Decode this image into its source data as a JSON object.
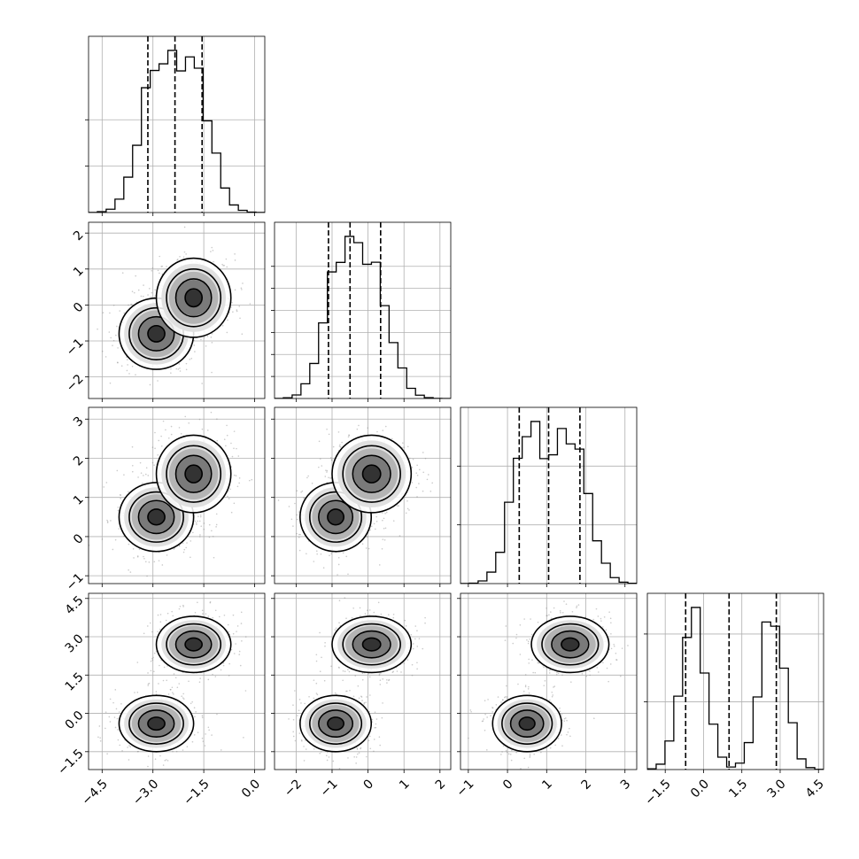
{
  "chart_data": {
    "type": "corner",
    "title": "",
    "grid": true,
    "quantiles_shown": [
      0.16,
      0.5,
      0.84
    ],
    "colors": {
      "points": "#8a8a8a",
      "lines": "#000000",
      "grid": "#b0b0b0",
      "frame": "#000000"
    },
    "parameters": [
      {
        "name": "",
        "range": [
          -4.9,
          0.3
        ],
        "ticks": [
          -4.5,
          -3.0,
          -1.5,
          0.0
        ],
        "tick_labels": [
          "−4.5",
          "−3.0",
          "−1.5",
          "0.0"
        ],
        "modes": [
          {
            "mean": -2.9,
            "sd": 0.5
          },
          {
            "mean": -1.8,
            "sd": 0.5
          }
        ],
        "quantiles": [
          -3.15,
          -2.35,
          -1.55
        ]
      },
      {
        "name": "",
        "range": [
          -2.6,
          2.3
        ],
        "ticks": [
          -2,
          -1,
          0,
          1,
          2
        ],
        "tick_labels": [
          "−2",
          "−1",
          "0",
          "1",
          "2"
        ],
        "modes": [
          {
            "mean": -0.8,
            "sd": 0.45
          },
          {
            "mean": 0.1,
            "sd": 0.5
          }
        ],
        "quantiles": [
          -1.1,
          -0.5,
          0.35
        ]
      },
      {
        "name": "",
        "range": [
          -1.2,
          3.3
        ],
        "ticks": [
          -1,
          0,
          1,
          2,
          3
        ],
        "tick_labels": [
          "−1",
          "0",
          "1",
          "2",
          "3"
        ],
        "modes": [
          {
            "mean": 0.5,
            "sd": 0.4
          },
          {
            "mean": 1.6,
            "sd": 0.45
          }
        ],
        "quantiles": [
          0.3,
          1.05,
          1.85
        ]
      },
      {
        "name": "",
        "range": [
          -2.2,
          4.7
        ],
        "ticks": [
          -1.5,
          0.0,
          1.5,
          3.0,
          4.5
        ],
        "tick_labels": [
          "−1.5",
          "0.0",
          "1.5",
          "3.0",
          "4.5"
        ],
        "modes": [
          {
            "mean": -0.4,
            "sd": 0.5
          },
          {
            "mean": 2.7,
            "sd": 0.5
          }
        ],
        "quantiles": [
          -0.7,
          1.0,
          2.85
        ]
      }
    ],
    "diagonal_ylims": [
      1.9,
      1.6,
      1.5,
      1.3
    ],
    "diagonal_grid_lines": [
      [
        0.5,
        1.0
      ],
      [
        0.2,
        0.4,
        0.6,
        0.8,
        1.0,
        1.2
      ],
      [
        0.5,
        1.0
      ],
      [
        0.5,
        1.0
      ]
    ],
    "joint_modes": [
      [
        [
          -2.9,
          -0.8
        ],
        [
          -1.8,
          0.2
        ]
      ],
      [
        [
          -2.9,
          0.5
        ],
        [
          -1.8,
          1.6
        ]
      ],
      [
        [
          -0.9,
          0.5
        ],
        [
          0.1,
          1.6
        ]
      ],
      [
        [
          -2.9,
          -0.4
        ],
        [
          -1.8,
          2.7
        ]
      ],
      [
        [
          -0.9,
          -0.4
        ],
        [
          0.1,
          2.7
        ]
      ],
      [
        [
          0.5,
          -0.4
        ],
        [
          1.6,
          2.7
        ]
      ]
    ]
  }
}
